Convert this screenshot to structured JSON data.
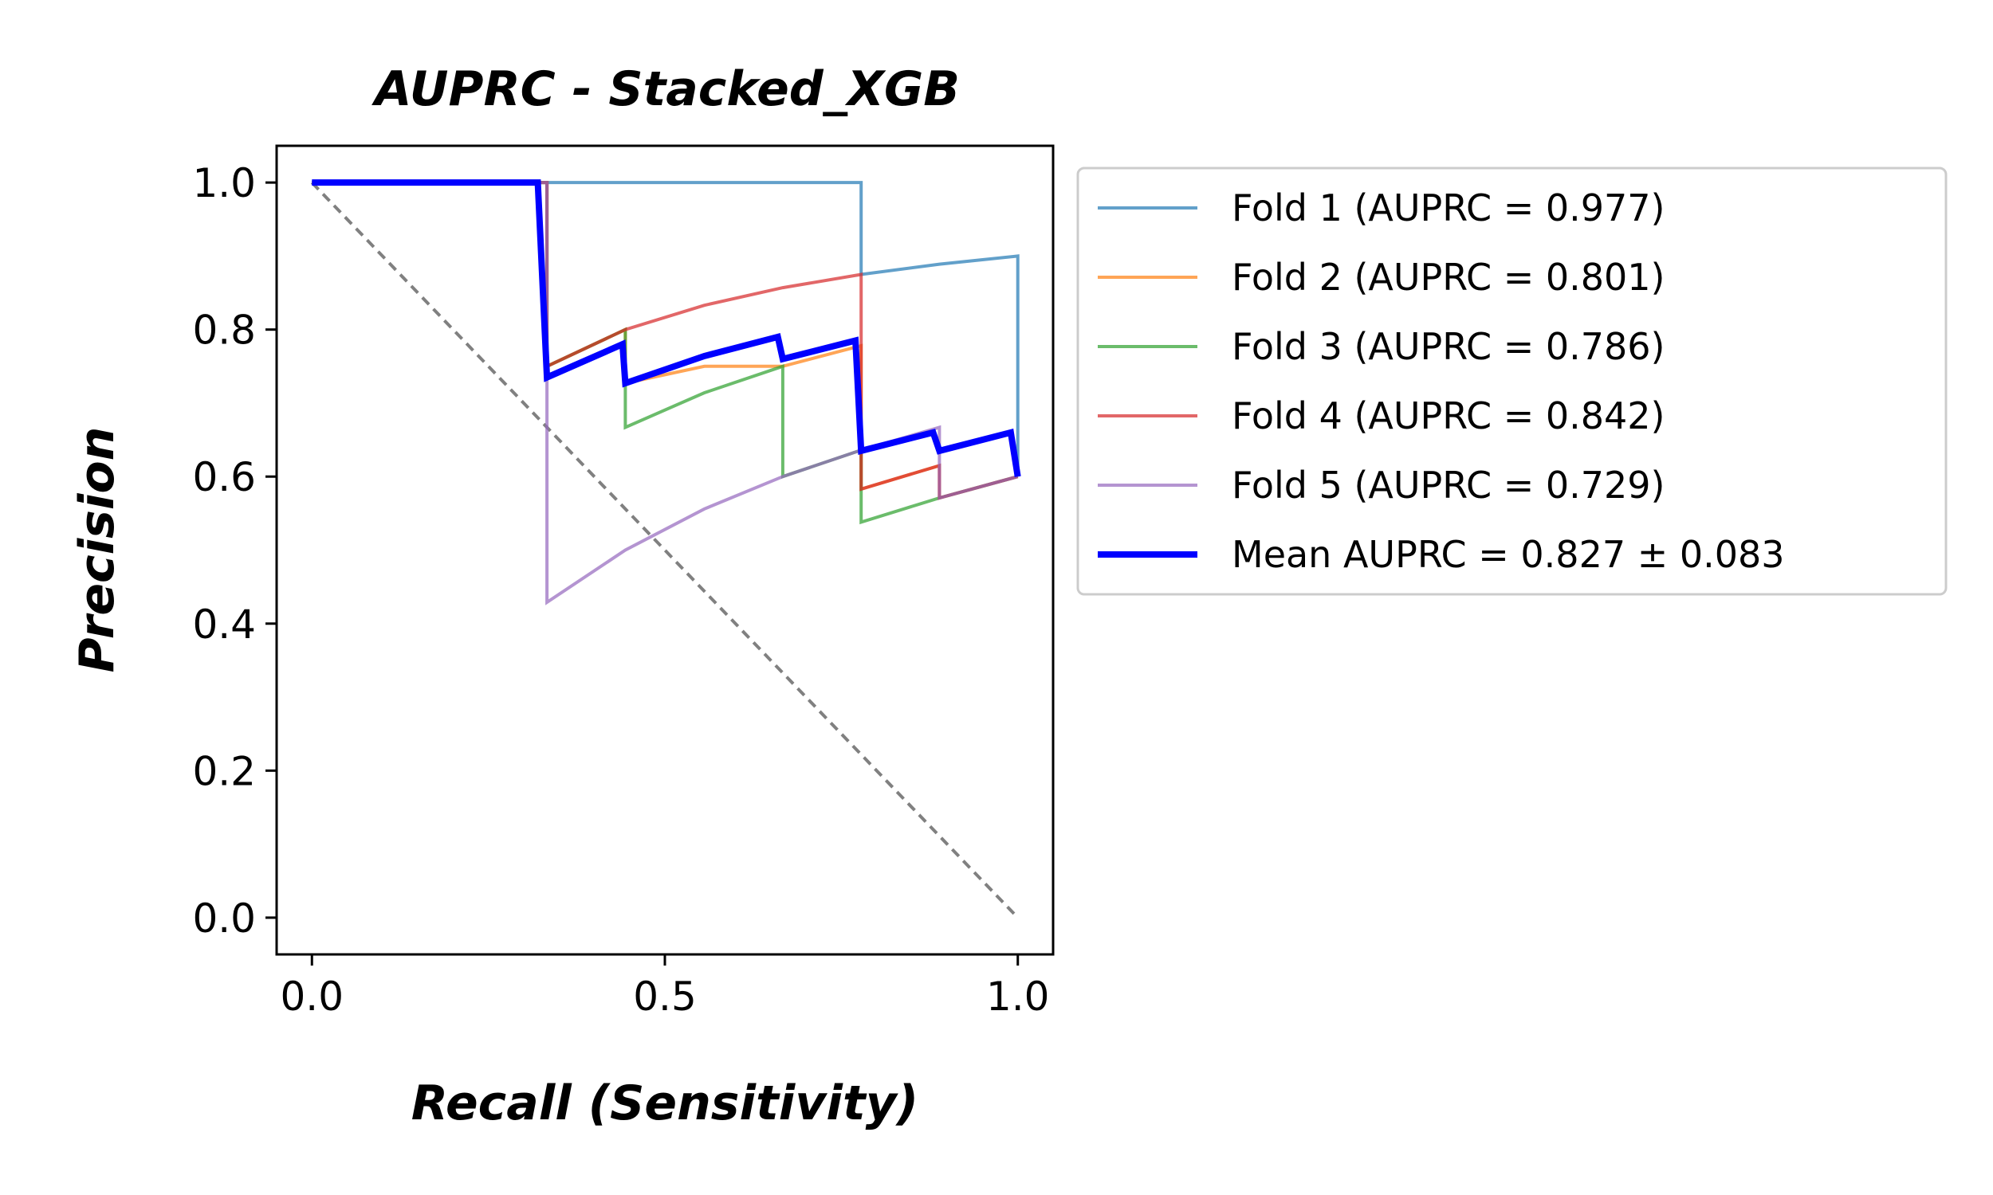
{
  "chart_data": {
    "type": "line",
    "title": "AUPRC - Stacked_XGB",
    "xlabel": "Recall (Sensitivity)",
    "ylabel": "Precision",
    "xlim": [
      -0.05,
      1.05
    ],
    "ylim": [
      -0.05,
      1.05
    ],
    "xticks": [
      0.0,
      0.5,
      1.0
    ],
    "xtick_labels": [
      "0.0",
      "0.5",
      "1.0"
    ],
    "yticks": [
      0.0,
      0.2,
      0.4,
      0.6,
      0.8,
      1.0
    ],
    "ytick_labels": [
      "0.0",
      "0.2",
      "0.4",
      "0.6",
      "0.8",
      "1.0"
    ],
    "grid": false,
    "legend_placement": "outside upper right",
    "reference_line": {
      "x": [
        0,
        1
      ],
      "y": [
        1,
        0
      ],
      "color": "#808080",
      "style": "dashed"
    },
    "series": [
      {
        "name": "Fold 1 (AUPRC = 0.977)",
        "color": "#1f77b4",
        "x": [
          0,
          0.111,
          0.222,
          0.333,
          0.444,
          0.556,
          0.667,
          0.778,
          0.778,
          0.889,
          1.0,
          1.0
        ],
        "y": [
          1.0,
          1.0,
          1.0,
          1.0,
          1.0,
          1.0,
          1.0,
          1.0,
          0.875,
          0.889,
          0.9,
          0.6
        ]
      },
      {
        "name": "Fold 2 (AUPRC = 0.801)",
        "color": "#ff7f0e",
        "x": [
          0,
          0.333,
          0.333,
          0.444,
          0.444,
          0.556,
          0.667,
          0.778,
          0.778,
          0.889,
          0.889,
          1.0,
          1.0
        ],
        "y": [
          1.0,
          1.0,
          0.75,
          0.8,
          0.727,
          0.75,
          0.75,
          0.778,
          0.583,
          0.615,
          0.571,
          0.6,
          0.6
        ]
      },
      {
        "name": "Fold 3 (AUPRC = 0.786)",
        "color": "#2ca02c",
        "x": [
          0,
          0.333,
          0.333,
          0.444,
          0.444,
          0.556,
          0.667,
          0.667,
          0.778,
          0.778,
          0.889,
          1.0,
          1.0
        ],
        "y": [
          1.0,
          1.0,
          0.75,
          0.8,
          0.667,
          0.714,
          0.75,
          0.6,
          0.636,
          0.538,
          0.571,
          0.6,
          0.6
        ]
      },
      {
        "name": "Fold 4 (AUPRC = 0.842)",
        "color": "#d62728",
        "x": [
          0,
          0.333,
          0.333,
          0.444,
          0.556,
          0.667,
          0.778,
          0.778,
          0.889,
          0.889,
          1.0,
          1.0
        ],
        "y": [
          1.0,
          1.0,
          0.75,
          0.8,
          0.833,
          0.857,
          0.875,
          0.583,
          0.615,
          0.571,
          0.6,
          0.6
        ]
      },
      {
        "name": "Fold 5 (AUPRC = 0.729)",
        "color": "#9467bd",
        "x": [
          0,
          0.333,
          0.333,
          0.444,
          0.556,
          0.667,
          0.778,
          0.889,
          0.889,
          1.0,
          1.0
        ],
        "y": [
          1.0,
          1.0,
          0.429,
          0.5,
          0.556,
          0.6,
          0.636,
          0.667,
          0.571,
          0.6,
          0.6
        ]
      },
      {
        "name": "Mean AUPRC = 0.827 ± 0.083",
        "color": "#0000ff",
        "x": [
          0,
          0.32,
          0.333,
          0.44,
          0.444,
          0.556,
          0.66,
          0.667,
          0.77,
          0.778,
          0.88,
          0.889,
          0.99,
          1.0
        ],
        "y": [
          1.0,
          1.0,
          0.735,
          0.78,
          0.727,
          0.764,
          0.79,
          0.76,
          0.785,
          0.635,
          0.66,
          0.635,
          0.66,
          0.6
        ]
      }
    ]
  }
}
